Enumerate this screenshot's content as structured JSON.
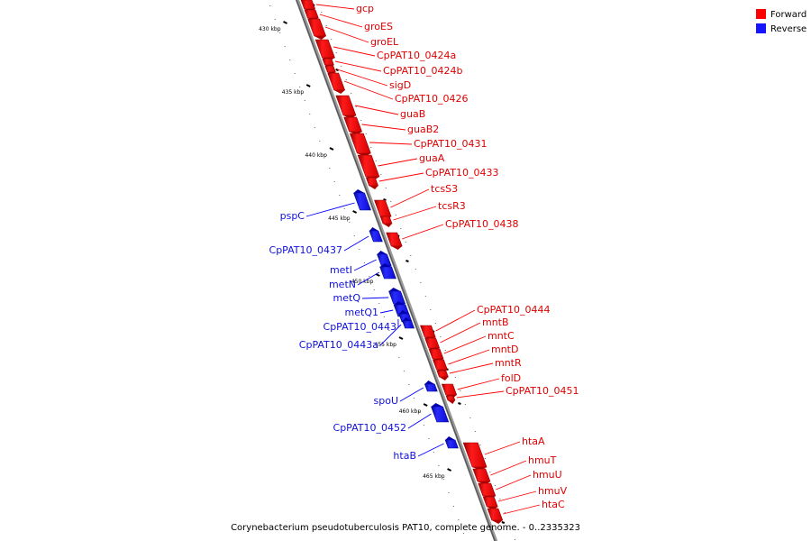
{
  "legend": {
    "forward": {
      "label": "Forward",
      "color": "#ff0000"
    },
    "reverse": {
      "label": "Reverse",
      "color": "#1515ff"
    }
  },
  "caption": "Corynebacterium pseudotuberculosis PAT10, complete genome. - 0..2335323",
  "axis": {
    "unit": "kbp",
    "ticks": [
      "430 kbp",
      "435 kbp",
      "440 kbp",
      "445 kbp",
      "450 kbp",
      "455 kbp",
      "460 kbp",
      "465 kbp"
    ]
  },
  "genes_forward": [
    "gcp",
    "groES",
    "groEL",
    "CpPAT10_0424a",
    "CpPAT10_0424b",
    "sigD",
    "CpPAT10_0426",
    "guaB",
    "guaB2",
    "CpPAT10_0431",
    "guaA",
    "CpPAT10_0433",
    "tcsS3",
    "tcsR3",
    "CpPAT10_0438",
    "CpPAT10_0444",
    "mntB",
    "mntC",
    "mntD",
    "mntR",
    "folD",
    "CpPAT10_0451",
    "htaA",
    "hmuT",
    "hmuU",
    "hmuV",
    "htaC"
  ],
  "genes_reverse": [
    "pspC",
    "CpPAT10_0437",
    "metI",
    "metN",
    "metQ",
    "metQ1",
    "CpPAT10_0443",
    "CpPAT10_0443a",
    "spoU",
    "CpPAT10_0452",
    "htaB"
  ]
}
